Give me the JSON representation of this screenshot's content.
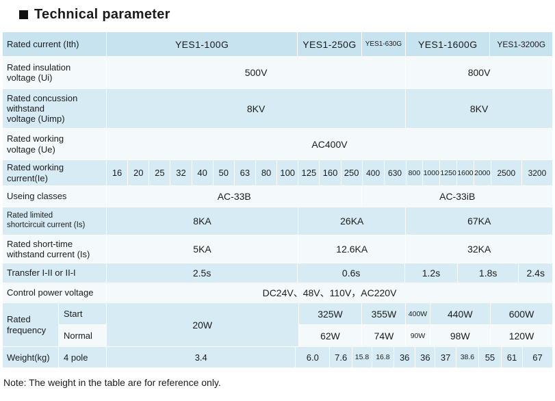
{
  "title": "Technical parameter",
  "note": "Note: The weight in the table are for reference only.",
  "header": {
    "label": "Rated current (Ith)",
    "models": [
      "YES1-100G",
      "YES1-250G",
      "YES1-630G",
      "YES1-1600G",
      "YES1-3200G"
    ]
  },
  "rows": {
    "insulation": {
      "label": "Rated insulation\nvoltage (Ui)",
      "values": [
        "500V",
        "800V"
      ]
    },
    "concussion": {
      "label": "Rated concussion\nwithstand\nvoltage (Uimp)",
      "values": [
        "8KV",
        "8KV"
      ]
    },
    "working_voltage": {
      "label": "Rated working\nvoltage (Ue)",
      "value": "AC400V"
    },
    "working_current": {
      "label": "Rated working\ncurrent(Ie)",
      "values": [
        "16",
        "20",
        "25",
        "32",
        "40",
        "50",
        "63",
        "80",
        "100",
        "125",
        "160",
        "250",
        "400",
        "630",
        "800",
        "1000",
        "1250",
        "1600",
        "2000",
        "2500",
        "3200"
      ]
    },
    "useing_classes": {
      "label": "Useing classes",
      "values": [
        "AC-33B",
        "AC-33iB"
      ]
    },
    "shortcircuit": {
      "label": "Rated limited\nshortcircuit current (Is)",
      "values": [
        "8KA",
        "26KA",
        "67KA"
      ]
    },
    "short_time": {
      "label": "Rated short-time\nwithstand current (Is)",
      "values": [
        "5KA",
        "12.6KA",
        "32KA"
      ]
    },
    "transfer": {
      "label": "Transfer I-II or II-I",
      "values": [
        "2.5s",
        "0.6s",
        "1.2s",
        "1.8s",
        "2.4s"
      ]
    },
    "control_power": {
      "label": "Control power voltage",
      "value": "DC24V、48V、110V，AC220V"
    },
    "frequency": {
      "label": "Rated\nfrequency",
      "shared_value": "20W",
      "start": {
        "label": "Start",
        "values": [
          "325W",
          "355W",
          "400W",
          "440W",
          "600W"
        ]
      },
      "normal": {
        "label": "Normal",
        "values": [
          "62W",
          "74W",
          "90W",
          "98W",
          "120W"
        ]
      }
    },
    "weight": {
      "label": "Weight(kg)",
      "sublabel": "4 pole",
      "values": [
        "3.4",
        "6.0",
        "7.6",
        "15.8",
        "16.8",
        "36",
        "36",
        "37",
        "38.6",
        "55",
        "61",
        "67"
      ]
    }
  },
  "colors": {
    "header_bg": "#c6e3ef",
    "row_blue": "#d6ebf4",
    "row_light": "#f4fafc",
    "text": "#1b1b1b"
  }
}
